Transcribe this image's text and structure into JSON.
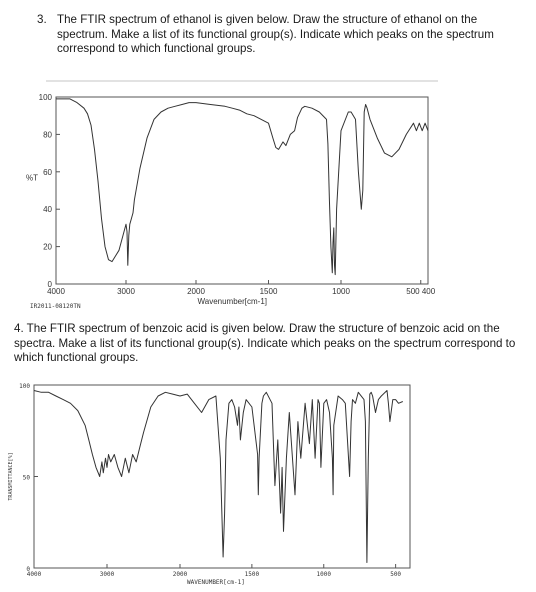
{
  "question3": {
    "number": "3.",
    "text": "The FTIR spectrum of ethanol is given below. Draw the structure of ethanol on the spectrum. Make a list of its functional group(s). Indicate which peaks on the spectrum correspond to which functional groups."
  },
  "question4": {
    "text": "4. The FTIR spectrum of benzoic acid is given below. Draw the structure of benzoic acid on the spectra. Make a list of its functional group(s). Indicate which peaks on the spectrum correspond to which functional groups."
  },
  "chart_data": [
    {
      "type": "line",
      "ylabel": "%T",
      "xlabel": "Wavenumber[cm-1]",
      "footer": "IR2011-08120TN",
      "y_ticks": [
        "100",
        "80",
        "60",
        "40",
        "20",
        "0"
      ],
      "x_ticks": [
        "4000",
        "3000",
        "2000",
        "1500",
        "1000",
        "500 400"
      ],
      "x": [
        4000,
        3900,
        3800,
        3700,
        3600,
        3550,
        3500,
        3450,
        3400,
        3350,
        3300,
        3250,
        3200,
        3100,
        3050,
        3000,
        2985,
        2975,
        2960,
        2945,
        2930,
        2900,
        2880,
        2800,
        2700,
        2600,
        2500,
        2400,
        2300,
        2200,
        2100,
        2000,
        1900,
        1800,
        1750,
        1700,
        1650,
        1600,
        1500,
        1470,
        1450,
        1430,
        1400,
        1380,
        1350,
        1320,
        1300,
        1270,
        1250,
        1200,
        1150,
        1100,
        1090,
        1080,
        1070,
        1060,
        1055,
        1050,
        1045,
        1040,
        1030,
        1000,
        950,
        930,
        900,
        880,
        860,
        850,
        840,
        830,
        820,
        800,
        750,
        700,
        650,
        600,
        550,
        500,
        480,
        460,
        440,
        420,
        400
      ],
      "y": [
        99,
        99,
        99,
        97,
        94,
        91,
        85,
        72,
        55,
        35,
        20,
        13,
        12,
        18,
        25,
        32,
        28,
        10,
        26,
        32,
        34,
        38,
        45,
        62,
        78,
        88,
        92,
        94,
        95,
        96,
        97,
        97,
        96,
        95,
        94,
        93,
        91,
        90,
        86,
        78,
        73,
        72,
        76,
        74,
        80,
        82,
        89,
        94,
        95,
        94,
        92,
        88,
        75,
        45,
        20,
        6,
        22,
        30,
        10,
        5,
        40,
        82,
        92,
        92,
        88,
        60,
        40,
        50,
        92,
        96,
        94,
        88,
        78,
        70,
        68,
        72,
        80,
        86,
        82,
        86,
        82,
        86,
        82
      ],
      "xlim": [
        4000,
        400
      ],
      "ylim": [
        0,
        100
      ]
    },
    {
      "type": "line",
      "ylabel": "TRANSMITTANCE[%]",
      "xlabel": "WAVENUMBER[cm-1]",
      "y_ticks": [
        "100",
        "50",
        "0"
      ],
      "x_ticks": [
        "4000",
        "3000",
        "2000",
        "1500",
        "1000",
        "500"
      ],
      "x": [
        4000,
        3900,
        3800,
        3700,
        3600,
        3500,
        3400,
        3300,
        3250,
        3200,
        3150,
        3100,
        3070,
        3050,
        3020,
        3000,
        2980,
        2950,
        2900,
        2850,
        2800,
        2750,
        2700,
        2650,
        2600,
        2550,
        2500,
        2400,
        2300,
        2200,
        2100,
        2000,
        1950,
        1900,
        1850,
        1800,
        1750,
        1720,
        1700,
        1690,
        1680,
        1660,
        1640,
        1620,
        1600,
        1590,
        1580,
        1560,
        1540,
        1500,
        1460,
        1455,
        1450,
        1430,
        1420,
        1400,
        1360,
        1340,
        1320,
        1300,
        1290,
        1280,
        1260,
        1240,
        1200,
        1180,
        1160,
        1130,
        1100,
        1080,
        1060,
        1040,
        1030,
        1020,
        1000,
        980,
        960,
        940,
        935,
        930,
        900,
        870,
        850,
        820,
        810,
        800,
        780,
        760,
        720,
        710,
        700,
        690,
        680,
        670,
        660,
        640,
        620,
        600,
        560,
        550,
        540,
        520,
        500,
        480,
        450
      ],
      "y": [
        97,
        96,
        96,
        94,
        92,
        90,
        86,
        78,
        70,
        62,
        55,
        50,
        58,
        52,
        60,
        55,
        62,
        58,
        62,
        55,
        50,
        60,
        52,
        62,
        58,
        66,
        74,
        88,
        94,
        96,
        95,
        94,
        95,
        90,
        85,
        92,
        94,
        60,
        6,
        30,
        70,
        90,
        92,
        88,
        78,
        88,
        70,
        85,
        92,
        88,
        62,
        40,
        60,
        90,
        94,
        96,
        90,
        45,
        70,
        30,
        55,
        20,
        60,
        85,
        40,
        80,
        60,
        90,
        68,
        92,
        60,
        92,
        90,
        55,
        90,
        92,
        85,
        60,
        40,
        78,
        94,
        92,
        90,
        50,
        80,
        92,
        90,
        96,
        92,
        80,
        3,
        60,
        95,
        96,
        94,
        85,
        92,
        94,
        97,
        90,
        80,
        92,
        92,
        90,
        91
      ],
      "xlim": [
        4000,
        400
      ],
      "ylim": [
        0,
        100
      ]
    }
  ]
}
